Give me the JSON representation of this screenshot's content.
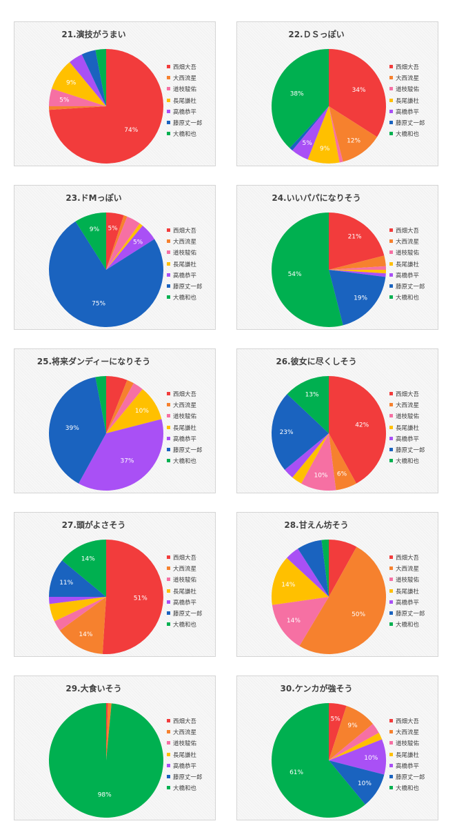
{
  "legend": [
    "西畑大吾",
    "大西流星",
    "道枝駿佑",
    "長尾謙杜",
    "高橋恭平",
    "藤原丈一郎",
    "大橋和也"
  ],
  "colors": [
    "#f23c3c",
    "#f6812e",
    "#f670a3",
    "#ffc000",
    "#a950f5",
    "#1a63bf",
    "#00b050"
  ],
  "chart_data": [
    {
      "type": "pie",
      "title": "21.演技がうまい",
      "labels": [
        "西畑大吾",
        "大西流星",
        "道枝駿佑",
        "長尾謙杜",
        "高橋恭平",
        "藤原丈一郎",
        "大橋和也"
      ],
      "values": [
        74,
        1,
        5,
        9,
        4,
        4,
        3
      ],
      "data_labels": [
        "74%",
        "",
        "5%",
        "9%",
        "",
        "",
        ""
      ]
    },
    {
      "type": "pie",
      "title": "22.ＤＳっぽい",
      "labels": [
        "西畑大吾",
        "大西流星",
        "道枝駿佑",
        "長尾謙杜",
        "高橋恭平",
        "藤原丈一郎",
        "大橋和也"
      ],
      "values": [
        34,
        12,
        1,
        9,
        5,
        1,
        38
      ],
      "data_labels": [
        "34%",
        "12%",
        "",
        "9%",
        "5%",
        "",
        "38%"
      ]
    },
    {
      "type": "pie",
      "title": "23.ドMっぽい",
      "labels": [
        "西畑大吾",
        "大西流星",
        "道枝駿佑",
        "長尾謙杜",
        "高橋恭平",
        "藤原丈一郎",
        "大橋和也"
      ],
      "values": [
        5,
        1,
        4,
        1,
        5,
        75,
        9
      ],
      "data_labels": [
        "5%",
        "",
        "",
        "",
        "5%",
        "75%",
        "9%"
      ]
    },
    {
      "type": "pie",
      "title": "24.いいパパになりそう",
      "labels": [
        "西畑大吾",
        "大西流星",
        "道枝駿佑",
        "長尾謙杜",
        "高橋恭平",
        "藤原丈一郎",
        "大橋和也"
      ],
      "values": [
        21,
        3,
        1,
        1,
        1,
        19,
        54
      ],
      "data_labels": [
        "21%",
        "",
        "",
        "",
        "",
        "19%",
        "54%"
      ]
    },
    {
      "type": "pie",
      "title": "25.将来ダンディーになりそう",
      "labels": [
        "西畑大吾",
        "大西流星",
        "道枝駿佑",
        "長尾謙杜",
        "高橋恭平",
        "藤原丈一郎",
        "大橋和也"
      ],
      "values": [
        6,
        2,
        3,
        10,
        37,
        39,
        3
      ],
      "data_labels": [
        "",
        "",
        "",
        "10%",
        "37%",
        "39%",
        ""
      ]
    },
    {
      "type": "pie",
      "title": "26.彼女に尽くしそう",
      "labels": [
        "西畑大吾",
        "大西流星",
        "道枝駿佑",
        "長尾謙杜",
        "高橋恭平",
        "藤原丈一郎",
        "大橋和也"
      ],
      "values": [
        42,
        6,
        10,
        3,
        3,
        23,
        13
      ],
      "data_labels": [
        "42%",
        "6%",
        "10%",
        "",
        "",
        "23%",
        "13%"
      ]
    },
    {
      "type": "pie",
      "title": "27.頭がよさそう",
      "labels": [
        "西畑大吾",
        "大西流星",
        "道枝駿佑",
        "長尾謙杜",
        "高橋恭平",
        "藤原丈一郎",
        "大橋和也"
      ],
      "values": [
        51,
        14,
        3,
        5,
        2,
        11,
        14
      ],
      "data_labels": [
        "51%",
        "14%",
        "",
        "",
        "",
        "11%",
        "14%"
      ]
    },
    {
      "type": "pie",
      "title": "28.甘えん坊そう",
      "labels": [
        "西畑大吾",
        "大西流星",
        "道枝駿佑",
        "長尾謙杜",
        "高橋恭平",
        "藤原丈一郎",
        "大橋和也"
      ],
      "values": [
        8,
        50,
        14,
        14,
        4,
        7,
        2
      ],
      "data_labels": [
        "",
        "50%",
        "14%",
        "14%",
        "",
        "",
        ""
      ]
    },
    {
      "type": "pie",
      "title": "29.大食いそう",
      "labels": [
        "西畑大吾",
        "大西流星",
        "道枝駿佑",
        "長尾謙杜",
        "高橋恭平",
        "藤原丈一郎",
        "大橋和也"
      ],
      "values": [
        0.5,
        1,
        0,
        0,
        0,
        0,
        98.5
      ],
      "data_labels": [
        "",
        "",
        "",
        "",
        "",
        "",
        "98%"
      ]
    },
    {
      "type": "pie",
      "title": "30.ケンカが強そう",
      "labels": [
        "西畑大吾",
        "大西流星",
        "道枝駿佑",
        "長尾謙杜",
        "高橋恭平",
        "藤原丈一郎",
        "大橋和也"
      ],
      "values": [
        5,
        9,
        3,
        2,
        10,
        10,
        61
      ],
      "data_labels": [
        "5%",
        "9%",
        "",
        "",
        "10%",
        "10%",
        "61%"
      ]
    }
  ]
}
